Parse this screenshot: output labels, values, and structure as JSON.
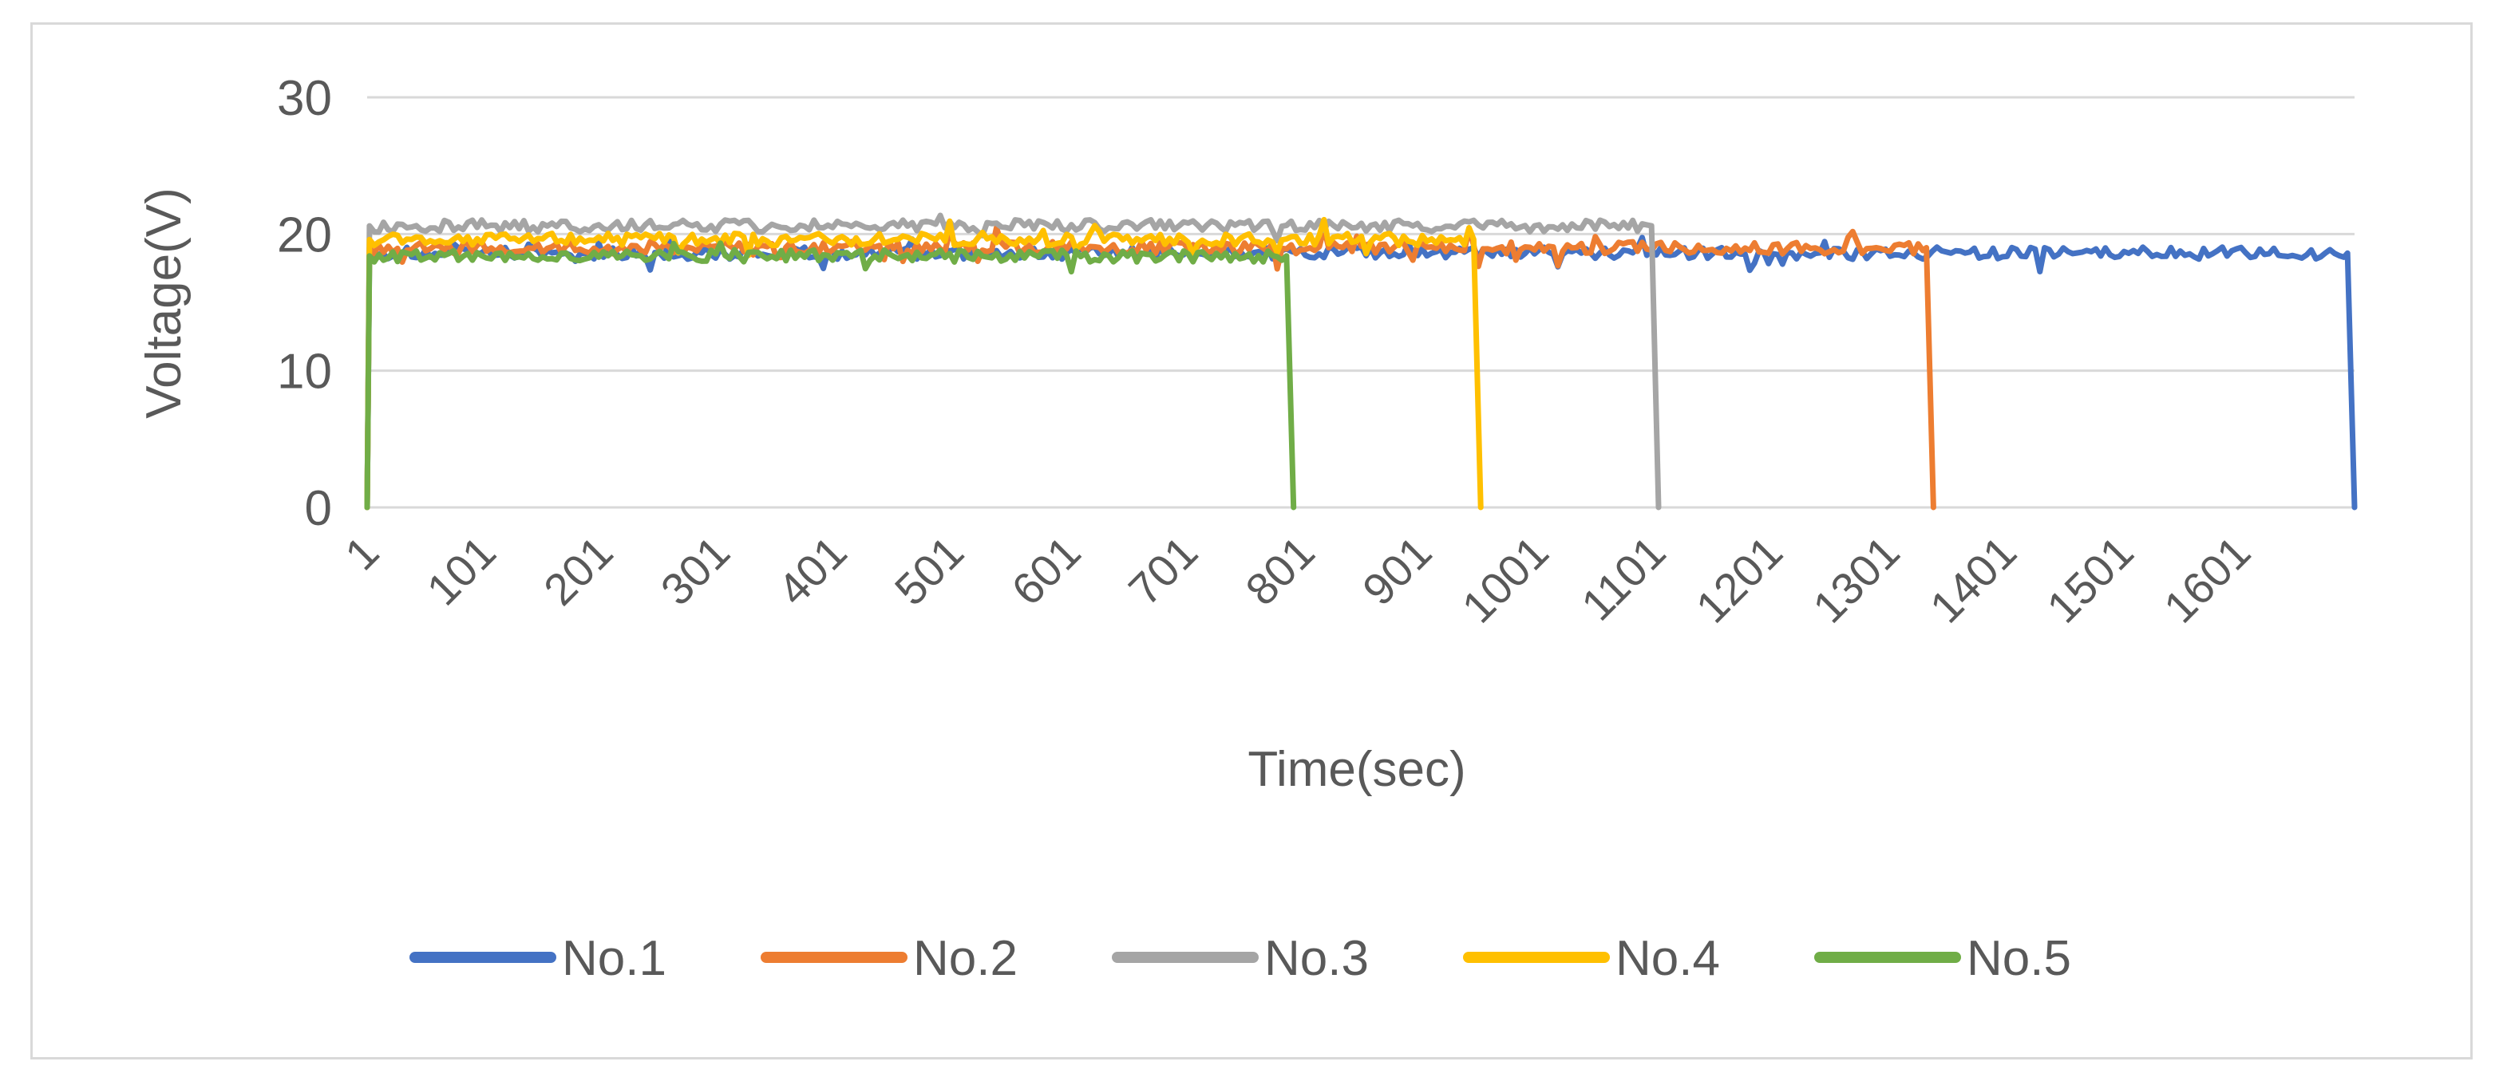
{
  "chart_data": {
    "type": "line",
    "xlabel": "Time(sec)",
    "ylabel": "Voltage(V)",
    "xlim": [
      1,
      1700
    ],
    "ylim": [
      0,
      30
    ],
    "y_ticks": [
      0,
      10,
      20,
      30
    ],
    "x_tick_labels": [
      "1",
      "101",
      "201",
      "301",
      "401",
      "501",
      "601",
      "701",
      "801",
      "901",
      "1001",
      "1101",
      "1201",
      "1301",
      "1401",
      "1501",
      "1601"
    ],
    "grid": "horizontal",
    "legend_position": "bottom",
    "series": [
      {
        "name": "No.1",
        "color": "#4472c4",
        "start_time": 1,
        "start_voltage": 0,
        "mean_voltage": 18.6,
        "end_time": 1700,
        "end_voltage": 0
      },
      {
        "name": "No.2",
        "color": "#ed7d31",
        "start_time": 1,
        "start_voltage": 0,
        "mean_voltage": 19.0,
        "end_time": 1340,
        "end_voltage": 0
      },
      {
        "name": "No.3",
        "color": "#a5a5a5",
        "start_time": 1,
        "start_voltage": 0,
        "mean_voltage": 20.6,
        "end_time": 1105,
        "end_voltage": 0
      },
      {
        "name": "No.4",
        "color": "#ffc000",
        "start_time": 1,
        "start_voltage": 0,
        "mean_voltage": 19.6,
        "end_time": 953,
        "end_voltage": 0
      },
      {
        "name": "No.5",
        "color": "#70ad47",
        "start_time": 1,
        "start_voltage": 0,
        "mean_voltage": 18.4,
        "end_time": 793,
        "end_voltage": 0
      }
    ]
  }
}
